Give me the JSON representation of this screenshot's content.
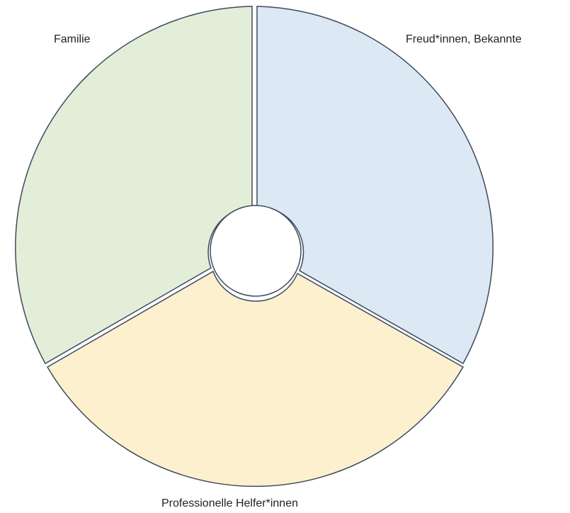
{
  "diagram": {
    "type": "segmented-ring",
    "sectors": [
      {
        "id": "freunde",
        "label": "Freud*innen, Bekannte",
        "fill": "#dde8f5"
      },
      {
        "id": "profis",
        "label": "Professionelle Helfer*innen",
        "fill": "#fdf0cf"
      },
      {
        "id": "familie",
        "label": "Familie",
        "fill": "#e2eed8"
      }
    ],
    "stroke_color": "#3e4a5c",
    "center_fill": "#ffffff"
  }
}
